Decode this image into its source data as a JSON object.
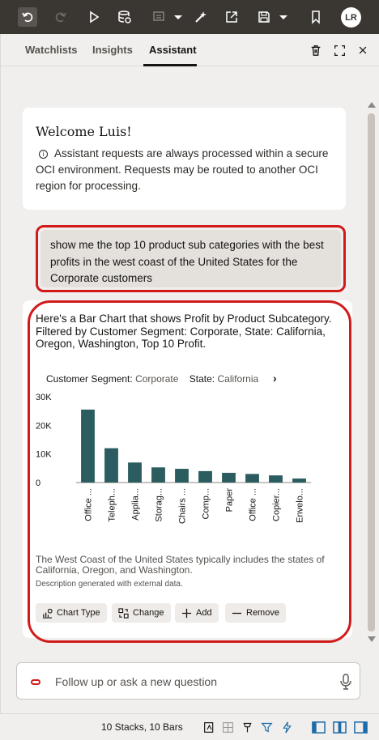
{
  "toolbar": {
    "icons": [
      "undo-icon",
      "redo-icon",
      "play-icon",
      "data-refresh-icon",
      "comment-icon",
      "dropdown-icon",
      "magic-icon",
      "export-icon",
      "save-icon",
      "dropdown-icon",
      "bookmark-icon"
    ],
    "avatar": "LR"
  },
  "tabs": [
    {
      "label": "Watchlists"
    },
    {
      "label": "Insights"
    },
    {
      "label": "Assistant",
      "active": true
    }
  ],
  "welcome": {
    "title": "Welcome Luis!",
    "body": "Assistant requests are always processed within a secure OCI environment. Requests may be routed to another OCI region for processing."
  },
  "prompt": "show me the top 10 product sub categories with the best profits in the west coast of the United States for the Corporate customers",
  "answer": {
    "text": "Here's a Bar Chart that shows Profit by Product Subcategory. Filtered by Customer Segment: Corporate, State: California, Oregon, Washington, Top 10 Profit.",
    "filter1_label": "Customer Segment:",
    "filter1_value": "Corporate",
    "filter2_label": "State:",
    "filter2_value": "California",
    "description": "The West Coast of the United States typically includes the states of California, Oregon, and Washington.",
    "note": "Description generated with external data.",
    "actions": {
      "chart_type": "Chart Type",
      "change": "Change",
      "add": "Add",
      "remove": "Remove"
    }
  },
  "chart_data": {
    "type": "bar",
    "categories": [
      "Office ...",
      "Teleph...",
      "Applia...",
      "Storag...",
      "Chairs ...",
      "Comp...",
      "Paper",
      "Office ...",
      "Copier...",
      "Envelo..."
    ],
    "values": [
      25500,
      12000,
      7000,
      5300,
      4800,
      4000,
      3400,
      3000,
      2500,
      1400
    ],
    "yticks": [
      "0",
      "10K",
      "20K",
      "30K"
    ],
    "ylim": [
      0,
      30000
    ],
    "bar_color": "#2b5c5f"
  },
  "input": {
    "placeholder": "Follow up or ask a new question"
  },
  "status": {
    "text": "10 Stacks, 10 Bars"
  },
  "colors": {
    "accent_red": "#d11a1a",
    "toolbar_bg": "#3a3632"
  }
}
